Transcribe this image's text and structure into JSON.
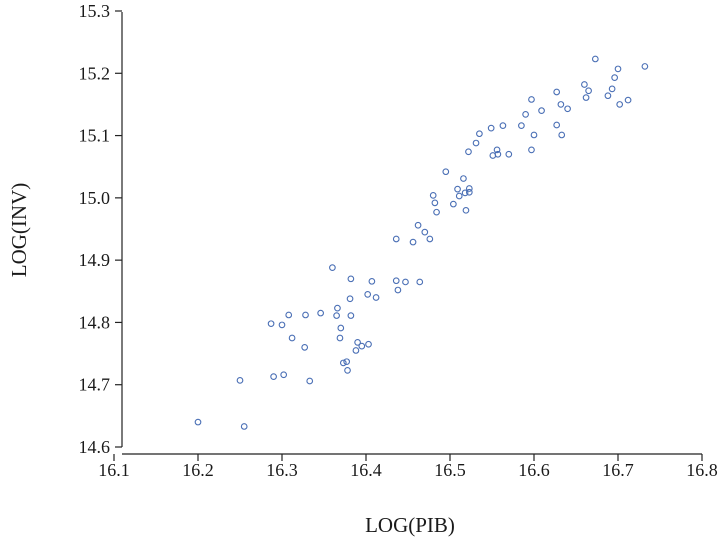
{
  "chart_data": {
    "type": "scatter",
    "xlabel": "LOG(PIB)",
    "ylabel": "LOG(INV)",
    "xlim": [
      16.1,
      16.8
    ],
    "ylim": [
      14.6,
      15.3
    ],
    "x_ticks": [
      "16.1",
      "16.2",
      "16.3",
      "16.4",
      "16.5",
      "16.6",
      "16.7",
      "16.8"
    ],
    "y_ticks": [
      "14.6",
      "14.7",
      "14.8",
      "14.9",
      "15.0",
      "15.1",
      "15.2",
      "15.3"
    ],
    "grid": false,
    "marker": "open-circle",
    "point_color": "#4a6fb5",
    "points": [
      [
        16.2,
        14.64
      ],
      [
        16.255,
        14.633
      ],
      [
        16.25,
        14.707
      ],
      [
        16.29,
        14.713
      ],
      [
        16.302,
        14.716
      ],
      [
        16.333,
        14.706
      ],
      [
        16.287,
        14.798
      ],
      [
        16.3,
        14.796
      ],
      [
        16.308,
        14.812
      ],
      [
        16.328,
        14.812
      ],
      [
        16.346,
        14.815
      ],
      [
        16.312,
        14.775
      ],
      [
        16.327,
        14.76
      ],
      [
        16.36,
        14.888
      ],
      [
        16.382,
        14.87
      ],
      [
        16.366,
        14.823
      ],
      [
        16.365,
        14.811
      ],
      [
        16.381,
        14.838
      ],
      [
        16.382,
        14.811
      ],
      [
        16.37,
        14.791
      ],
      [
        16.369,
        14.775
      ],
      [
        16.373,
        14.735
      ],
      [
        16.377,
        14.737
      ],
      [
        16.378,
        14.723
      ],
      [
        16.388,
        14.755
      ],
      [
        16.39,
        14.768
      ],
      [
        16.395,
        14.762
      ],
      [
        16.403,
        14.765
      ],
      [
        16.402,
        14.845
      ],
      [
        16.407,
        14.866
      ],
      [
        16.412,
        14.84
      ],
      [
        16.436,
        14.867
      ],
      [
        16.438,
        14.852
      ],
      [
        16.447,
        14.865
      ],
      [
        16.464,
        14.865
      ],
      [
        16.436,
        14.934
      ],
      [
        16.456,
        14.929
      ],
      [
        16.462,
        14.956
      ],
      [
        16.47,
        14.945
      ],
      [
        16.476,
        14.934
      ],
      [
        16.48,
        15.004
      ],
      [
        16.482,
        14.992
      ],
      [
        16.484,
        14.977
      ],
      [
        16.495,
        15.042
      ],
      [
        16.504,
        14.99
      ],
      [
        16.509,
        15.014
      ],
      [
        16.511,
        15.003
      ],
      [
        16.516,
        15.031
      ],
      [
        16.518,
        15.008
      ],
      [
        16.519,
        14.98
      ],
      [
        16.523,
        15.009
      ],
      [
        16.523,
        15.015
      ],
      [
        16.522,
        15.074
      ],
      [
        16.531,
        15.088
      ],
      [
        16.535,
        15.103
      ],
      [
        16.549,
        15.112
      ],
      [
        16.551,
        15.068
      ],
      [
        16.556,
        15.077
      ],
      [
        16.557,
        15.07
      ],
      [
        16.563,
        15.116
      ],
      [
        16.57,
        15.07
      ],
      [
        16.585,
        15.116
      ],
      [
        16.59,
        15.134
      ],
      [
        16.597,
        15.158
      ],
      [
        16.597,
        15.077
      ],
      [
        16.6,
        15.101
      ],
      [
        16.609,
        15.14
      ],
      [
        16.627,
        15.17
      ],
      [
        16.627,
        15.117
      ],
      [
        16.632,
        15.15
      ],
      [
        16.633,
        15.101
      ],
      [
        16.64,
        15.143
      ],
      [
        16.66,
        15.182
      ],
      [
        16.662,
        15.161
      ],
      [
        16.665,
        15.172
      ],
      [
        16.673,
        15.223
      ],
      [
        16.688,
        15.164
      ],
      [
        16.693,
        15.175
      ],
      [
        16.696,
        15.193
      ],
      [
        16.7,
        15.207
      ],
      [
        16.702,
        15.15
      ],
      [
        16.712,
        15.157
      ],
      [
        16.732,
        15.211
      ]
    ]
  }
}
